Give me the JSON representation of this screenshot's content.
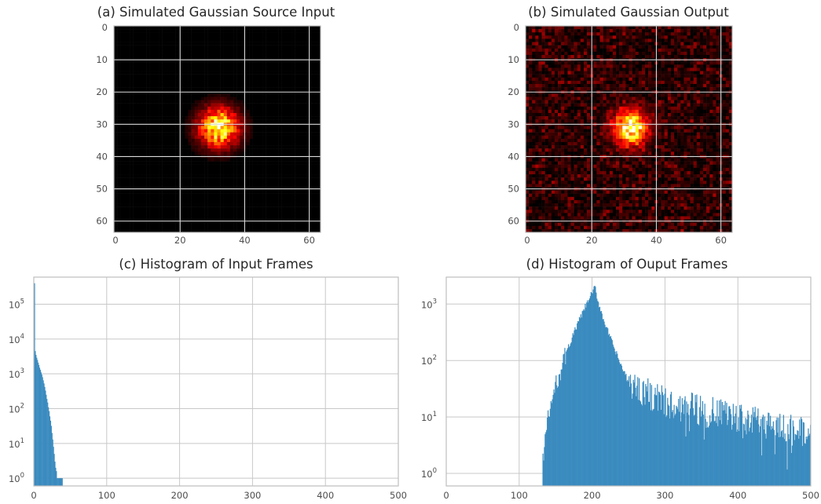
{
  "chart_data": [
    {
      "id": "a",
      "type": "heatmap",
      "title": "(a) Simulated Gaussian Source Input",
      "xlabel": "",
      "ylabel": "",
      "grid_size": 64,
      "xlim": [
        0,
        63
      ],
      "ylim": [
        63,
        0
      ],
      "xticks": [
        0,
        20,
        40,
        60
      ],
      "yticks": [
        0,
        10,
        20,
        30,
        40,
        50,
        60
      ],
      "colormap": "hot",
      "gaussian_center": [
        32,
        31
      ],
      "gaussian_sigma": 4.2,
      "background_level": 0.0,
      "grid": true
    },
    {
      "id": "b",
      "type": "heatmap",
      "title": "(b) Simulated Gaussian Output",
      "xlabel": "",
      "ylabel": "",
      "grid_size": 64,
      "xlim": [
        0,
        63
      ],
      "ylim": [
        63,
        0
      ],
      "xticks": [
        0,
        20,
        40,
        60
      ],
      "yticks": [
        0,
        10,
        20,
        30,
        40,
        50,
        60
      ],
      "colormap": "hot",
      "gaussian_center": [
        32,
        31
      ],
      "gaussian_sigma": 3.6,
      "background_level": 0.22,
      "grid": true
    },
    {
      "id": "c",
      "type": "bar",
      "title": "(c) Histogram of Input Frames",
      "xlabel": "",
      "ylabel": "",
      "xlim": [
        0,
        500
      ],
      "ylim": [
        0.6,
        600000
      ],
      "yscale": "log",
      "xticks": [
        0,
        100,
        200,
        300,
        400,
        500
      ],
      "yticks": [
        1,
        10,
        100,
        1000,
        10000,
        100000
      ],
      "ytick_labels": [
        [
          "10",
          "0"
        ],
        [
          "10",
          "1"
        ],
        [
          "10",
          "2"
        ],
        [
          "10",
          "3"
        ],
        [
          "10",
          "4"
        ],
        [
          "10",
          "5"
        ]
      ],
      "bar_color": "#3a8bbf",
      "grid": true,
      "x": [
        1,
        2,
        3,
        4,
        5,
        6,
        7,
        8,
        9,
        10,
        11,
        12,
        13,
        14,
        15,
        16,
        17,
        18,
        19,
        20,
        21,
        22,
        23,
        24,
        25,
        26,
        27,
        28,
        29,
        30,
        31,
        32,
        33,
        34,
        35,
        36,
        37,
        38,
        39,
        40
      ],
      "values": [
        400000,
        4500,
        3500,
        2900,
        2500,
        2100,
        1800,
        1500,
        1300,
        1100,
        950,
        800,
        650,
        530,
        420,
        330,
        250,
        190,
        150,
        110,
        85,
        60,
        45,
        32,
        20,
        13,
        8,
        5,
        3,
        2,
        1.6,
        1,
        1,
        1,
        1,
        1,
        1,
        1,
        1,
        0
      ],
      "note": ""
    },
    {
      "id": "d",
      "type": "bar",
      "title": "(d) Histogram of Ouput Frames",
      "xlabel": "",
      "ylabel": "",
      "xlim": [
        0,
        500
      ],
      "ylim": [
        0.6,
        3000
      ],
      "yscale": "log",
      "xticks": [
        0,
        100,
        200,
        300,
        400,
        500
      ],
      "yticks": [
        1,
        10,
        100,
        1000
      ],
      "ytick_labels": [
        [
          "10",
          "0"
        ],
        [
          "10",
          "1"
        ],
        [
          "10",
          "2"
        ],
        [
          "10",
          "3"
        ]
      ],
      "bar_color": "#3a8bbf",
      "grid": true,
      "shape": {
        "start": 132,
        "end": 500,
        "peak_x": 204,
        "peak_value": 2000,
        "rise_start_value": 1,
        "shoulder_x": 250,
        "shoulder_value": 40,
        "tail_start_x": 300,
        "tail_start_value": 18,
        "tail_end_value": 5
      }
    }
  ]
}
